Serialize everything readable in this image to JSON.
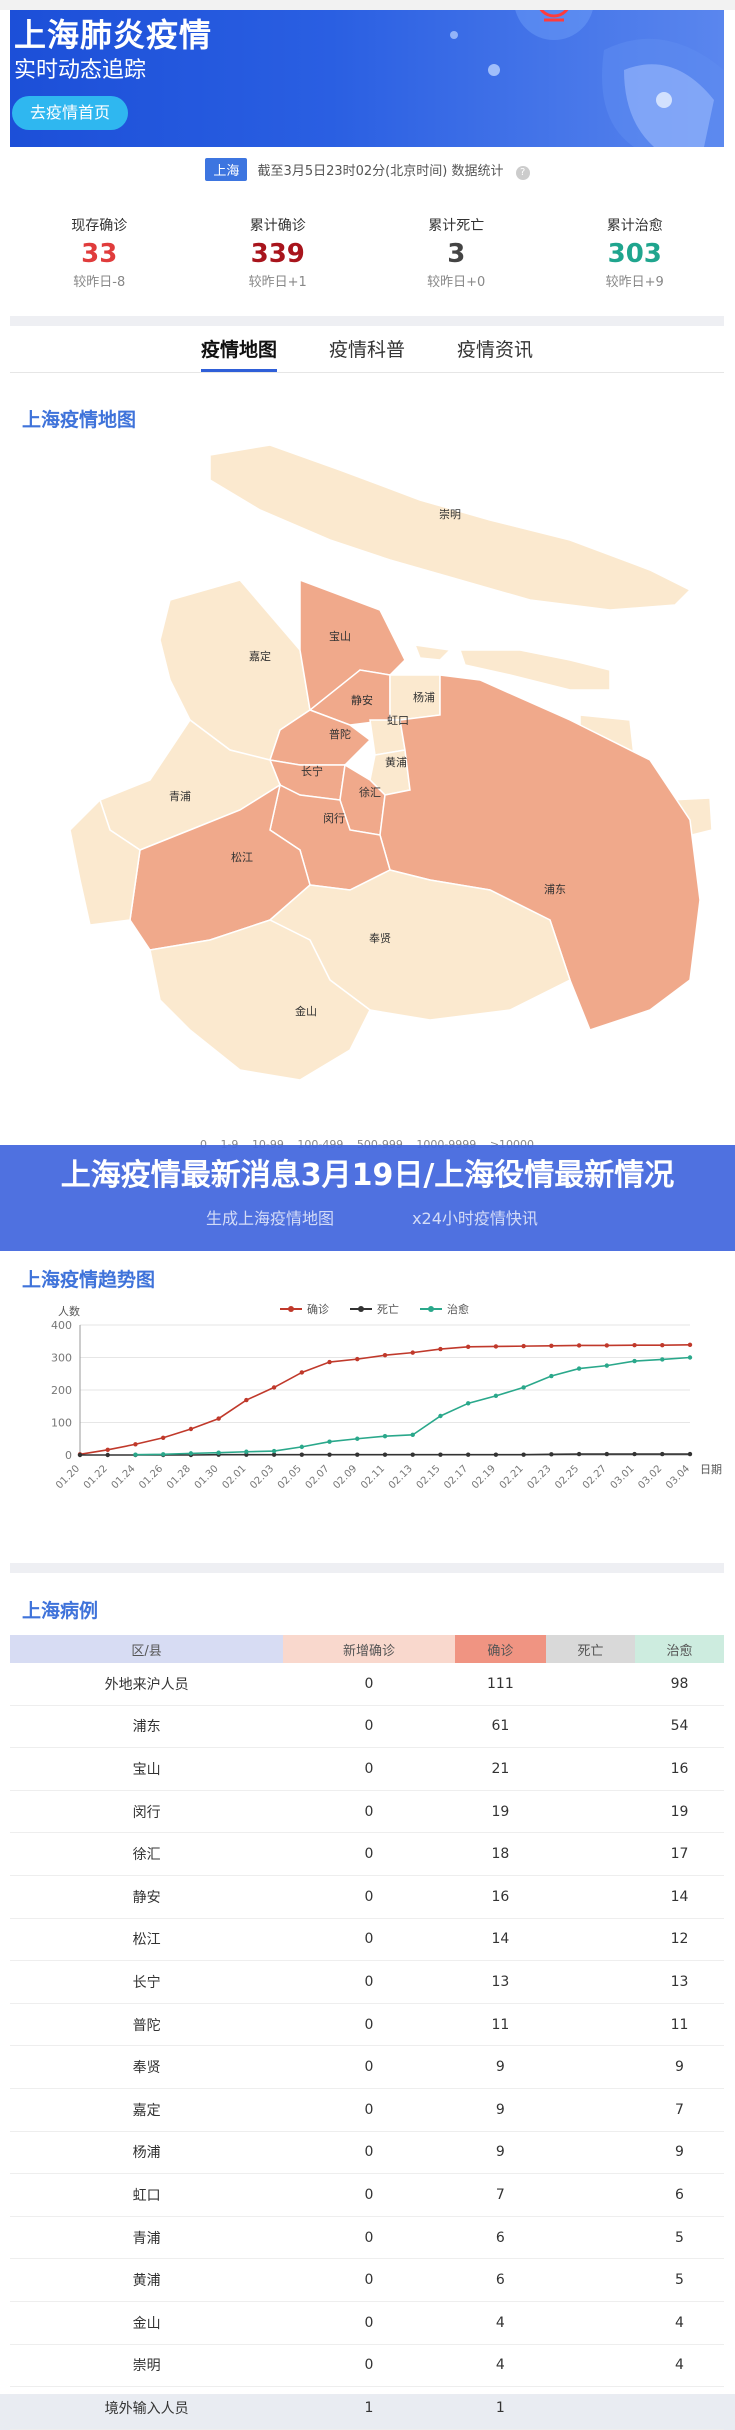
{
  "banner": {
    "title": "上海肺炎疫情",
    "subtitle": "实时动态追踪",
    "home_button": "去疫情首页"
  },
  "update": {
    "city": "上海",
    "text": "截至3月5日23时02分(北京时间)  数据统计",
    "info": "?"
  },
  "stats": [
    {
      "label": "现存确诊",
      "value": "33",
      "delta": "较昨日-8",
      "color": "#e03c3c"
    },
    {
      "label": "累计确诊",
      "value": "339",
      "delta": "较昨日+1",
      "color": "#a8141c"
    },
    {
      "label": "累计死亡",
      "value": "3",
      "delta": "较昨日+0",
      "color": "#444444"
    },
    {
      "label": "累计治愈",
      "value": "303",
      "delta": "较昨日+9",
      "color": "#1fa58e"
    }
  ],
  "tabs": [
    "疫情地图",
    "疫情科普",
    "疫情资讯"
  ],
  "map": {
    "title": "上海疫情地图",
    "districts": [
      "崇明",
      "宝山",
      "嘉定",
      "静安",
      "杨浦",
      "普陀",
      "虹口",
      "长宁",
      "黄浦",
      "青浦",
      "徐汇",
      "闵行",
      "松江",
      "浦东",
      "奉贤",
      "金山"
    ],
    "legend": [
      "0",
      "1-9",
      "10-99",
      "100-499",
      "500-999",
      "1000-9999",
      ">10000"
    ],
    "colors": {
      "light": "#fbe9cf",
      "mid": "#f0a98b",
      "stroke": "#ffffff"
    }
  },
  "overlay": {
    "headline": "上海疫情最新消息3月19日/上海役情最新情况",
    "btn_left": "生成上海疫情地图",
    "btn_right": "x24小时疫情快讯"
  },
  "trend": {
    "title": "上海疫情趋势图",
    "ylabel": "人数",
    "xlabel": "日期"
  },
  "chart_data": {
    "type": "line",
    "ylim": [
      0,
      400
    ],
    "yticks": [
      "0",
      "100",
      "200",
      "300",
      "400"
    ],
    "x": [
      "01.20",
      "01.22",
      "01.24",
      "01.26",
      "01.28",
      "01.30",
      "02.01",
      "02.03",
      "02.05",
      "02.07",
      "02.09",
      "02.11",
      "02.13",
      "02.15",
      "02.17",
      "02.19",
      "02.21",
      "02.23",
      "02.25",
      "02.27",
      "03.01",
      "03.02",
      "03.04"
    ],
    "series": [
      {
        "name": "确诊",
        "color": "#c0392b",
        "values": [
          2,
          16,
          33,
          53,
          80,
          112,
          169,
          208,
          254,
          286,
          295,
          307,
          315,
          326,
          333,
          334,
          335,
          336,
          337,
          337,
          338,
          338,
          339
        ]
      },
      {
        "name": "死亡",
        "color": "#333333",
        "values": [
          0,
          0,
          0,
          0,
          0,
          1,
          1,
          1,
          1,
          1,
          1,
          1,
          1,
          1,
          1,
          1,
          1,
          2,
          3,
          3,
          3,
          3,
          3
        ]
      },
      {
        "name": "治愈",
        "color": "#2aa88b",
        "values": [
          null,
          null,
          1,
          2,
          5,
          7,
          10,
          12,
          25,
          41,
          50,
          58,
          62,
          120,
          159,
          182,
          208,
          243,
          266,
          275,
          289,
          294,
          300
        ]
      }
    ],
    "legend_position": "top"
  },
  "cases": {
    "title": "上海病例",
    "headers": [
      "区/县",
      "新增确诊",
      "确诊",
      "死亡",
      "治愈"
    ],
    "header_colors": [
      "#d7dcf3",
      "#f9d8cd",
      "#f09482",
      "#d9d9d9",
      "#cdecdf"
    ],
    "rows": [
      [
        "外地来沪人员",
        "0",
        "111",
        "",
        "98"
      ],
      [
        "浦东",
        "0",
        "61",
        "",
        "54"
      ],
      [
        "宝山",
        "0",
        "21",
        "",
        "16"
      ],
      [
        "闵行",
        "0",
        "19",
        "",
        "19"
      ],
      [
        "徐汇",
        "0",
        "18",
        "",
        "17"
      ],
      [
        "静安",
        "0",
        "16",
        "",
        "14"
      ],
      [
        "松江",
        "0",
        "14",
        "",
        "12"
      ],
      [
        "长宁",
        "0",
        "13",
        "",
        "13"
      ],
      [
        "普陀",
        "0",
        "11",
        "",
        "11"
      ],
      [
        "奉贤",
        "0",
        "9",
        "",
        "9"
      ],
      [
        "嘉定",
        "0",
        "9",
        "",
        "7"
      ],
      [
        "杨浦",
        "0",
        "9",
        "",
        "9"
      ],
      [
        "虹口",
        "0",
        "7",
        "",
        "6"
      ],
      [
        "青浦",
        "0",
        "6",
        "",
        "5"
      ],
      [
        "黄浦",
        "0",
        "6",
        "",
        "5"
      ],
      [
        "金山",
        "0",
        "4",
        "",
        "4"
      ],
      [
        "崇明",
        "0",
        "4",
        "",
        "4"
      ],
      [
        "境外输入人员",
        "1",
        "1",
        "",
        ""
      ]
    ]
  }
}
